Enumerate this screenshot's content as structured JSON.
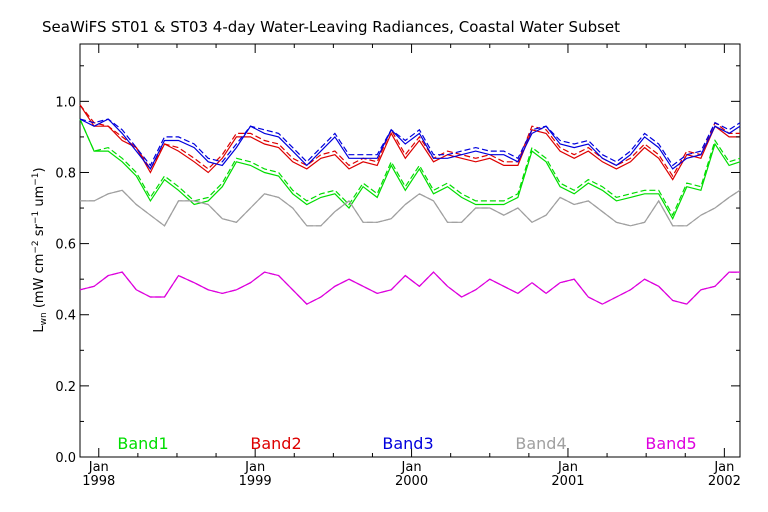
{
  "chart_data": {
    "type": "line",
    "title": "SeaWiFS ST01 & ST03 4-day Water-Leaving Radiances, Coastal Water Subset",
    "ylabel": {
      "base": "L",
      "sub": "wn",
      "units_open": " (mW cm",
      "sup1": "−2",
      "mid1": " sr",
      "sup2": "−1",
      "mid2": " um",
      "sup3": "−1",
      "units_close": ")"
    },
    "xlim": [
      1997.88,
      2002.1
    ],
    "ylim": [
      0,
      1.15
    ],
    "yticks": [
      {
        "value": 0.0,
        "label": "0.0"
      },
      {
        "value": 0.2,
        "label": "0.2"
      },
      {
        "value": 0.4,
        "label": "0.4"
      },
      {
        "value": 0.6,
        "label": "0.6"
      },
      {
        "value": 0.8,
        "label": "0.8"
      },
      {
        "value": 1.0,
        "label": "1.0"
      }
    ],
    "xticks_major": [
      {
        "value": 1998,
        "month": "Jan",
        "year": "1998"
      },
      {
        "value": 1999,
        "month": "Jan",
        "year": "1999"
      },
      {
        "value": 2000,
        "month": "Jan",
        "year": "2000"
      },
      {
        "value": 2001,
        "month": "Jan",
        "year": "2001"
      },
      {
        "value": 2002,
        "month": "Jan",
        "year": "2002"
      }
    ],
    "xticks_minor": [
      1998.25,
      1998.5,
      1998.75,
      1999.25,
      1999.5,
      1999.75,
      2000.25,
      2000.5,
      2000.75,
      2001.25,
      2001.5,
      2001.75
    ],
    "x": [
      1997.88,
      1997.97,
      1998.06,
      1998.15,
      1998.24,
      1998.33,
      1998.42,
      1998.51,
      1998.61,
      1998.7,
      1998.79,
      1998.88,
      1998.97,
      1999.06,
      1999.15,
      1999.24,
      1999.33,
      1999.42,
      1999.51,
      1999.6,
      1999.69,
      1999.78,
      1999.87,
      1999.96,
      2000.05,
      2000.14,
      2000.23,
      2000.32,
      2000.41,
      2000.5,
      2000.59,
      2000.68,
      2000.77,
      2000.86,
      2000.95,
      2001.04,
      2001.13,
      2001.22,
      2001.31,
      2001.4,
      2001.49,
      2001.58,
      2001.67,
      2001.76,
      2001.85,
      2001.94,
      2002.03,
      2002.1
    ],
    "series": [
      {
        "name": "Band1",
        "color": "#00dd00",
        "values": [
          0.95,
          0.86,
          0.86,
          0.83,
          0.79,
          0.72,
          0.78,
          0.75,
          0.71,
          0.72,
          0.76,
          0.83,
          0.82,
          0.8,
          0.79,
          0.74,
          0.71,
          0.73,
          0.74,
          0.7,
          0.76,
          0.73,
          0.82,
          0.75,
          0.81,
          0.74,
          0.76,
          0.73,
          0.71,
          0.71,
          0.71,
          0.73,
          0.86,
          0.83,
          0.76,
          0.74,
          0.77,
          0.75,
          0.72,
          0.73,
          0.74,
          0.74,
          0.67,
          0.76,
          0.75,
          0.88,
          0.82,
          0.83
        ],
        "values_dashed": [
          0.95,
          0.86,
          0.87,
          0.84,
          0.8,
          0.73,
          0.79,
          0.76,
          0.72,
          0.73,
          0.77,
          0.84,
          0.83,
          0.81,
          0.8,
          0.75,
          0.72,
          0.74,
          0.75,
          0.71,
          0.77,
          0.74,
          0.83,
          0.76,
          0.82,
          0.75,
          0.77,
          0.74,
          0.72,
          0.72,
          0.72,
          0.74,
          0.87,
          0.84,
          0.77,
          0.75,
          0.78,
          0.76,
          0.73,
          0.74,
          0.75,
          0.75,
          0.68,
          0.77,
          0.76,
          0.89,
          0.83,
          0.84
        ]
      },
      {
        "name": "Band2",
        "color": "#dd0000",
        "values": [
          0.99,
          0.93,
          0.93,
          0.89,
          0.87,
          0.8,
          0.88,
          0.86,
          0.83,
          0.8,
          0.84,
          0.9,
          0.9,
          0.88,
          0.87,
          0.83,
          0.81,
          0.84,
          0.85,
          0.81,
          0.83,
          0.82,
          0.91,
          0.84,
          0.89,
          0.83,
          0.85,
          0.84,
          0.83,
          0.84,
          0.82,
          0.82,
          0.92,
          0.91,
          0.86,
          0.84,
          0.86,
          0.83,
          0.81,
          0.83,
          0.87,
          0.84,
          0.78,
          0.85,
          0.84,
          0.93,
          0.9,
          0.9
        ],
        "values_dashed": [
          0.99,
          0.94,
          0.93,
          0.9,
          0.87,
          0.81,
          0.88,
          0.87,
          0.84,
          0.81,
          0.85,
          0.91,
          0.91,
          0.89,
          0.88,
          0.84,
          0.82,
          0.85,
          0.86,
          0.82,
          0.84,
          0.83,
          0.92,
          0.85,
          0.9,
          0.84,
          0.86,
          0.85,
          0.84,
          0.85,
          0.83,
          0.83,
          0.93,
          0.92,
          0.87,
          0.85,
          0.87,
          0.84,
          0.82,
          0.84,
          0.88,
          0.85,
          0.79,
          0.86,
          0.85,
          0.94,
          0.91,
          0.91
        ]
      },
      {
        "name": "Band3",
        "color": "#0000dd",
        "values": [
          0.95,
          0.93,
          0.95,
          0.91,
          0.86,
          0.81,
          0.89,
          0.89,
          0.87,
          0.83,
          0.82,
          0.87,
          0.93,
          0.91,
          0.9,
          0.86,
          0.82,
          0.86,
          0.9,
          0.84,
          0.84,
          0.84,
          0.92,
          0.88,
          0.91,
          0.84,
          0.84,
          0.85,
          0.86,
          0.85,
          0.85,
          0.83,
          0.91,
          0.93,
          0.88,
          0.87,
          0.88,
          0.84,
          0.82,
          0.85,
          0.9,
          0.87,
          0.81,
          0.84,
          0.85,
          0.93,
          0.91,
          0.93
        ],
        "values_dashed": [
          0.95,
          0.94,
          0.95,
          0.92,
          0.87,
          0.82,
          0.9,
          0.9,
          0.88,
          0.84,
          0.83,
          0.88,
          0.93,
          0.92,
          0.91,
          0.87,
          0.83,
          0.87,
          0.91,
          0.85,
          0.85,
          0.85,
          0.92,
          0.89,
          0.92,
          0.85,
          0.85,
          0.86,
          0.87,
          0.86,
          0.86,
          0.84,
          0.92,
          0.93,
          0.89,
          0.88,
          0.89,
          0.85,
          0.83,
          0.86,
          0.91,
          0.88,
          0.82,
          0.85,
          0.86,
          0.94,
          0.92,
          0.94
        ]
      },
      {
        "name": "Band4",
        "color": "#a0a0a0",
        "values": [
          0.72,
          0.72,
          0.74,
          0.75,
          0.71,
          0.68,
          0.65,
          0.72,
          0.72,
          0.71,
          0.67,
          0.66,
          0.7,
          0.74,
          0.73,
          0.7,
          0.65,
          0.65,
          0.69,
          0.72,
          0.66,
          0.66,
          0.67,
          0.71,
          0.74,
          0.72,
          0.66,
          0.66,
          0.7,
          0.7,
          0.68,
          0.7,
          0.66,
          0.68,
          0.73,
          0.71,
          0.72,
          0.69,
          0.66,
          0.65,
          0.66,
          0.72,
          0.65,
          0.65,
          0.68,
          0.7,
          0.73,
          0.75
        ],
        "values_dashed": [
          0.72,
          0.72,
          0.74,
          0.75,
          0.71,
          0.68,
          0.65,
          0.72,
          0.72,
          0.71,
          0.67,
          0.66,
          0.7,
          0.74,
          0.73,
          0.7,
          0.65,
          0.65,
          0.69,
          0.72,
          0.66,
          0.66,
          0.67,
          0.71,
          0.74,
          0.72,
          0.66,
          0.66,
          0.7,
          0.7,
          0.68,
          0.7,
          0.66,
          0.68,
          0.73,
          0.71,
          0.72,
          0.69,
          0.66,
          0.65,
          0.66,
          0.72,
          0.65,
          0.65,
          0.68,
          0.7,
          0.73,
          0.75
        ]
      },
      {
        "name": "Band5",
        "color": "#dd00dd",
        "values": [
          0.47,
          0.48,
          0.51,
          0.52,
          0.47,
          0.45,
          0.45,
          0.51,
          0.49,
          0.47,
          0.46,
          0.47,
          0.49,
          0.52,
          0.51,
          0.47,
          0.43,
          0.45,
          0.48,
          0.5,
          0.48,
          0.46,
          0.47,
          0.51,
          0.48,
          0.52,
          0.48,
          0.45,
          0.47,
          0.5,
          0.48,
          0.46,
          0.49,
          0.46,
          0.49,
          0.5,
          0.45,
          0.43,
          0.45,
          0.47,
          0.5,
          0.48,
          0.44,
          0.43,
          0.47,
          0.48,
          0.52,
          0.52
        ],
        "values_dashed": [
          0.47,
          0.48,
          0.51,
          0.52,
          0.47,
          0.45,
          0.45,
          0.51,
          0.49,
          0.47,
          0.46,
          0.47,
          0.49,
          0.52,
          0.51,
          0.47,
          0.43,
          0.45,
          0.48,
          0.5,
          0.48,
          0.46,
          0.47,
          0.51,
          0.48,
          0.52,
          0.48,
          0.45,
          0.47,
          0.5,
          0.48,
          0.46,
          0.49,
          0.46,
          0.49,
          0.5,
          0.45,
          0.43,
          0.45,
          0.47,
          0.5,
          0.48,
          0.44,
          0.43,
          0.47,
          0.48,
          0.52,
          0.52
        ]
      }
    ],
    "legend": "bottom, inside plot area, spread horizontally",
    "grid": false
  }
}
